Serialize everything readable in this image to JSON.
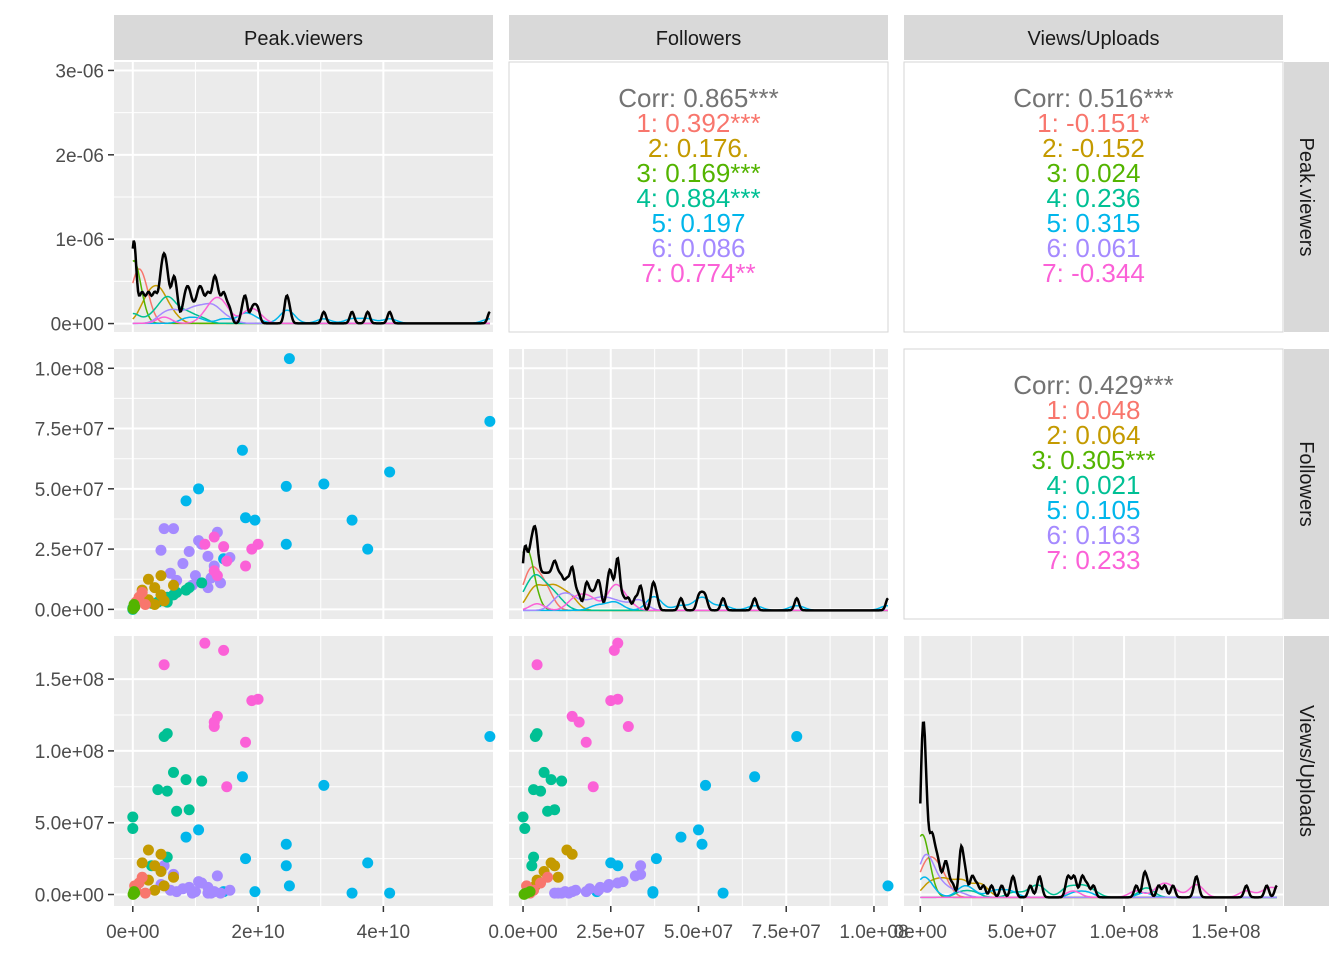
{
  "chart_data": {
    "type": "scatter",
    "title": "",
    "layout": "pairs-matrix",
    "variables": [
      "Peak.viewers",
      "Followers",
      "Views/Uploads"
    ],
    "group_colors": {
      "1": "#F8766D",
      "2": "#C49A00",
      "3": "#53B400",
      "4": "#00C094",
      "5": "#00B6EB",
      "6": "#A58AFF",
      "7": "#FB61D7"
    },
    "overall_corr_color": "#737373",
    "grid": true,
    "axes": {
      "x": [
        {
          "range": [
            -3000000000,
            57500000000
          ],
          "ticks": [
            0,
            20000000000,
            40000000000
          ],
          "tick_labels": [
            "0e+00",
            "2e+10",
            "4e+10"
          ]
        },
        {
          "range": [
            -4000000,
            104000000
          ],
          "ticks": [
            0,
            25000000,
            50000000,
            75000000,
            100000000
          ],
          "tick_labels": [
            "0.0e+00",
            "2.5e+07",
            "5.0e+07",
            "7.5e+07",
            "1.0e+08"
          ]
        },
        {
          "range": [
            -8000000,
            178000000
          ],
          "ticks": [
            0,
            50000000,
            100000000,
            150000000
          ],
          "tick_labels": [
            "0e+00",
            "5.0e+07",
            "1.0e+08",
            "1.5e+08"
          ]
        }
      ],
      "y": [
        {
          "range": [
            -1e-07,
            3.1e-06
          ],
          "ticks": [
            0,
            1e-06,
            2e-06,
            3e-06
          ],
          "tick_labels": [
            "0e+00",
            "1e-06",
            "2e-06",
            "3e-06"
          ]
        },
        {
          "range": [
            -4000000,
            108000000
          ],
          "ticks": [
            0,
            25000000,
            50000000,
            75000000,
            100000000
          ],
          "tick_labels": [
            "0.0e+00",
            "2.5e+07",
            "5.0e+07",
            "7.5e+07",
            "1.0e+08"
          ]
        },
        {
          "range": [
            -8000000,
            180000000
          ],
          "ticks": [
            0,
            50000000,
            100000000,
            150000000
          ],
          "tick_labels": [
            "0.0e+00",
            "5.0e+07",
            "1.0e+08",
            "1.5e+08"
          ]
        }
      ]
    },
    "correlations": {
      "peak_followers": {
        "overall": "Corr: 0.865***",
        "groups": [
          "1: 0.392***",
          "2: 0.176.",
          "3: 0.169***",
          "4: 0.884***",
          "5: 0.197",
          "6: 0.086",
          "7: 0.774**"
        ]
      },
      "peak_views": {
        "overall": "Corr: 0.516***",
        "groups": [
          "1: -0.151*",
          "2: -0.152",
          "3: 0.024",
          "4: 0.236",
          "5: 0.315",
          "6: 0.061",
          "7: -0.344"
        ]
      },
      "followers_views": {
        "overall": "Corr: 0.429***",
        "groups": [
          "1: 0.048",
          "2: 0.064",
          "3: 0.305***",
          "4: 0.021",
          "5: 0.105",
          "6: 0.163",
          "7: 0.233"
        ]
      }
    },
    "scatter_points": [
      {
        "g": 5,
        "peak": 25000000000,
        "followers": 104000000,
        "views": 6000000
      },
      {
        "g": 5,
        "peak": 57000000000,
        "followers": 78000000,
        "views": 110000000
      },
      {
        "g": 5,
        "peak": 17500000000,
        "followers": 66000000,
        "views": 82000000
      },
      {
        "g": 5,
        "peak": 41000000000,
        "followers": 57000000,
        "views": 1000000
      },
      {
        "g": 5,
        "peak": 30500000000,
        "followers": 52000000,
        "views": 76000000
      },
      {
        "g": 5,
        "peak": 24500000000,
        "followers": 51000000,
        "views": 35000000
      },
      {
        "g": 5,
        "peak": 10500000000,
        "followers": 50000000,
        "views": 45000000
      },
      {
        "g": 5,
        "peak": 8500000000,
        "followers": 45000000,
        "views": 40000000
      },
      {
        "g": 5,
        "peak": 18000000000,
        "followers": 38000000,
        "views": 25000000
      },
      {
        "g": 5,
        "peak": 19500000000,
        "followers": 37000000,
        "views": 2000000
      },
      {
        "g": 5,
        "peak": 35000000000,
        "followers": 37000000,
        "views": 1000000
      },
      {
        "g": 5,
        "peak": 24500000000,
        "followers": 27000000,
        "views": 20000000
      },
      {
        "g": 5,
        "peak": 37500000000,
        "followers": 25000000,
        "views": 22000000
      },
      {
        "g": 5,
        "peak": 14500000000,
        "followers": 21000000,
        "views": 2000000
      },
      {
        "g": 6,
        "peak": 5000000000,
        "followers": 33500000,
        "views": 20000000
      },
      {
        "g": 6,
        "peak": 6500000000,
        "followers": 33500000,
        "views": 14000000
      },
      {
        "g": 6,
        "peak": 10500000000,
        "followers": 28500000,
        "views": 9000000
      },
      {
        "g": 6,
        "peak": 13500000000,
        "followers": 32000000,
        "views": 13000000
      },
      {
        "g": 6,
        "peak": 11000000000,
        "followers": 27000000,
        "views": 8000000
      },
      {
        "g": 6,
        "peak": 4500000000,
        "followers": 24500000,
        "views": 7000000
      },
      {
        "g": 6,
        "peak": 9000000000,
        "followers": 24000000,
        "views": 5000000
      },
      {
        "g": 6,
        "peak": 12000000000,
        "followers": 22000000,
        "views": 5000000
      },
      {
        "g": 6,
        "peak": 15500000000,
        "followers": 21500000,
        "views": 3000000
      },
      {
        "g": 6,
        "peak": 8000000000,
        "followers": 19000000,
        "views": 4000000
      },
      {
        "g": 6,
        "peak": 13000000000,
        "followers": 18000000,
        "views": 2000000
      },
      {
        "g": 6,
        "peak": 6000000000,
        "followers": 15000000,
        "views": 3000000
      },
      {
        "g": 6,
        "peak": 10000000000,
        "followers": 14000000,
        "views": 2000000
      },
      {
        "g": 6,
        "peak": 12500000000,
        "followers": 13000000,
        "views": 1000000
      },
      {
        "g": 6,
        "peak": 7000000000,
        "followers": 12000000,
        "views": 2000000
      },
      {
        "g": 6,
        "peak": 14000000000,
        "followers": 11000000,
        "views": 1000000
      },
      {
        "g": 6,
        "peak": 9500000000,
        "followers": 10000000,
        "views": 1000000
      },
      {
        "g": 6,
        "peak": 12000000000,
        "followers": 9000000,
        "views": 1000000
      },
      {
        "g": 7,
        "peak": 11500000000,
        "followers": 27000000,
        "views": 175000000
      },
      {
        "g": 7,
        "peak": 14500000000,
        "followers": 26000000,
        "views": 170000000
      },
      {
        "g": 7,
        "peak": 5000000000,
        "followers": 4000000,
        "views": 160000000
      },
      {
        "g": 7,
        "peak": 20000000000,
        "followers": 27000000,
        "views": 136000000
      },
      {
        "g": 7,
        "peak": 19000000000,
        "followers": 25000000,
        "views": 135000000
      },
      {
        "g": 7,
        "peak": 13500000000,
        "followers": 14000000,
        "views": 124000000
      },
      {
        "g": 7,
        "peak": 13000000000,
        "followers": 30000000,
        "views": 117000000
      },
      {
        "g": 7,
        "peak": 18000000000,
        "followers": 18000000,
        "views": 106000000
      },
      {
        "g": 7,
        "peak": 13000000000,
        "followers": 16000000,
        "views": 120000000
      },
      {
        "g": 7,
        "peak": 15000000000,
        "followers": 20000000,
        "views": 75000000
      },
      {
        "g": 4,
        "peak": 5500000000,
        "followers": 4000000,
        "views": 112000000
      },
      {
        "g": 4,
        "peak": 5000000000,
        "followers": 3500000,
        "views": 110000000
      },
      {
        "g": 4,
        "peak": 6500000000,
        "followers": 6000000,
        "views": 85000000
      },
      {
        "g": 4,
        "peak": 8500000000,
        "followers": 8000000,
        "views": 80000000
      },
      {
        "g": 4,
        "peak": 11000000000,
        "followers": 11000000,
        "views": 79000000
      },
      {
        "g": 4,
        "peak": 4000000000,
        "followers": 3000000,
        "views": 73000000
      },
      {
        "g": 4,
        "peak": 5500000000,
        "followers": 5000000,
        "views": 72000000
      },
      {
        "g": 4,
        "peak": 7000000000,
        "followers": 7000000,
        "views": 58000000
      },
      {
        "g": 4,
        "peak": 9000000000,
        "followers": 9000000,
        "views": 59000000
      },
      {
        "g": 4,
        "peak": 0,
        "followers": 0,
        "views": 54000000
      },
      {
        "g": 4,
        "peak": 0,
        "followers": 500000,
        "views": 46000000
      },
      {
        "g": 4,
        "peak": 5500000000,
        "followers": 3000000,
        "views": 26000000
      },
      {
        "g": 4,
        "peak": 3000000000,
        "followers": 2500000,
        "views": 20000000
      },
      {
        "g": 2,
        "peak": 4500000000,
        "followers": 14000000,
        "views": 28000000
      },
      {
        "g": 2,
        "peak": 2500000000,
        "followers": 12500000,
        "views": 31000000
      },
      {
        "g": 2,
        "peak": 3500000000,
        "followers": 9000000,
        "views": 20000000
      },
      {
        "g": 2,
        "peak": 4500000000,
        "followers": 6000000,
        "views": 16000000
      },
      {
        "g": 2,
        "peak": 1500000000,
        "followers": 8000000,
        "views": 22000000
      },
      {
        "g": 2,
        "peak": 2500000000,
        "followers": 4000000,
        "views": 10000000
      },
      {
        "g": 2,
        "peak": 5000000000,
        "followers": 3500000,
        "views": 6000000
      },
      {
        "g": 2,
        "peak": 3500000000,
        "followers": 2000000,
        "views": 3000000
      },
      {
        "g": 2,
        "peak": 6500000000,
        "followers": 10000000,
        "views": 12000000
      },
      {
        "g": 1,
        "peak": 500000000,
        "followers": 3000000,
        "views": 3000000
      },
      {
        "g": 1,
        "peak": 1000000000,
        "followers": 5000000,
        "views": 8000000
      },
      {
        "g": 1,
        "peak": 2000000000,
        "followers": 2000000,
        "views": 1000000
      },
      {
        "g": 1,
        "peak": 300000000,
        "followers": 1000000,
        "views": 6000000
      },
      {
        "g": 1,
        "peak": 1500000000,
        "followers": 7000000,
        "views": 12000000
      },
      {
        "g": 3,
        "peak": 100000000,
        "followers": 500000,
        "views": 500000
      },
      {
        "g": 3,
        "peak": 300000000,
        "followers": 1000000,
        "views": 1000000
      },
      {
        "g": 3,
        "peak": 200000000,
        "followers": 2000000,
        "views": 2000000
      },
      {
        "g": 3,
        "peak": 50000000,
        "followers": 300000,
        "views": 100000
      }
    ]
  }
}
